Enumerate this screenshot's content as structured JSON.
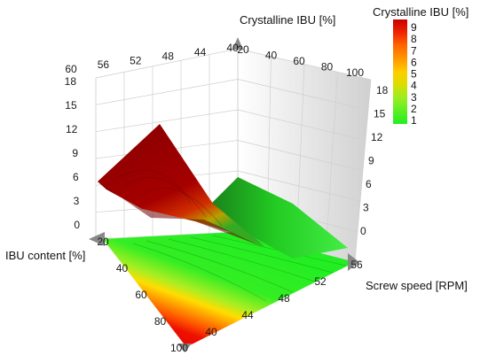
{
  "chart_data": {
    "type": "surface-3d",
    "title": "",
    "z_axis_title": "Crystalline IBU [%]",
    "x_axis_title": "IBU content [%]",
    "y_axis_title": "Screw speed [RPM]",
    "legend_title": "Crystalline IBU [%]",
    "legend_ticks": [
      "9",
      "8",
      "7",
      "6",
      "5",
      "4",
      "3",
      "2",
      "1"
    ],
    "legend_placement": "top-right",
    "x_range": [
      20,
      100
    ],
    "y_range": [
      40,
      60
    ],
    "z_range": [
      0,
      18
    ],
    "floor_x_ticks": [
      "20",
      "40",
      "60",
      "80",
      "100"
    ],
    "floor_y_ticks": [
      "40",
      "44",
      "48",
      "52",
      "56"
    ],
    "back_y_ticks": [
      "60",
      "56",
      "52",
      "48",
      "44",
      "40"
    ],
    "back_x_ticks": [
      "20",
      "40",
      "60",
      "80",
      "100"
    ],
    "z_ticks_left": [
      "18",
      "15",
      "12",
      "9",
      "6",
      "3",
      "0"
    ],
    "z_ticks_right": [
      "18",
      "15",
      "12",
      "9",
      "6",
      "3",
      "0"
    ],
    "colorscale": [
      "#22ee22",
      "#66ee22",
      "#bbee22",
      "#eeee22",
      "#ffcc00",
      "#ff9900",
      "#ff6600",
      "#ee2200",
      "#dd0000",
      "#aa0000"
    ],
    "surface_description_values": {
      "floor_color_low": "#22ee22",
      "floor_color_high": "#ee1100",
      "ridge_color": "#9c0000"
    }
  }
}
